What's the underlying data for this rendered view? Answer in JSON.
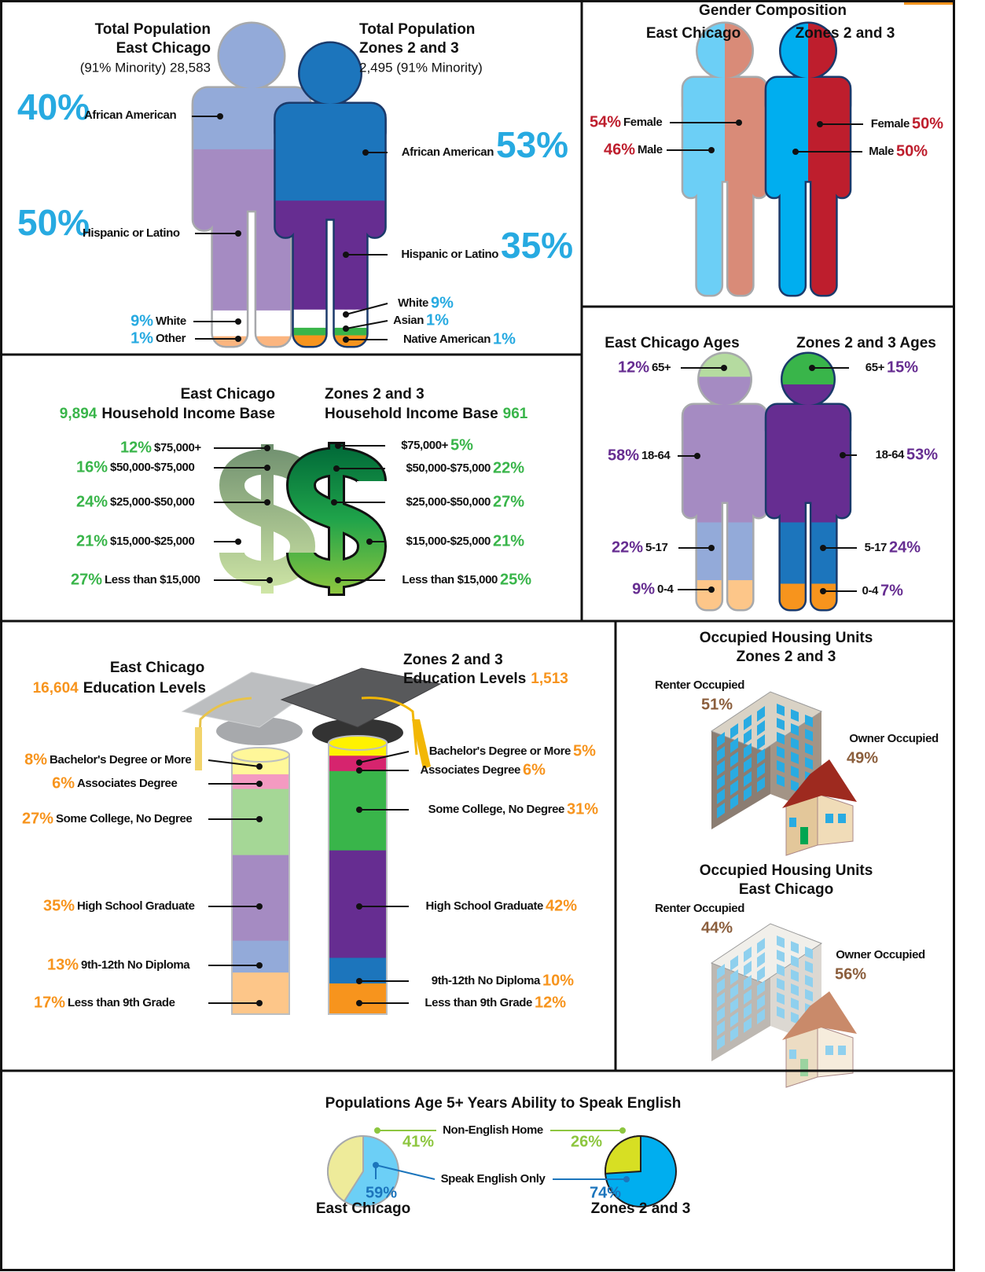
{
  "population": {
    "ec": {
      "title": [
        "Total Population",
        "East Chicago"
      ],
      "note": "(91% Minority) 28,583",
      "groups": [
        {
          "label": "African American",
          "value": "40%"
        },
        {
          "label": "Hispanic or Latino",
          "value": "50%"
        },
        {
          "label": "White",
          "value": "9%"
        },
        {
          "label": "Other",
          "value": "1%"
        }
      ]
    },
    "zones": {
      "title": [
        "Total Population",
        "Zones 2 and 3"
      ],
      "note": "2,495 (91% Minority)",
      "groups": [
        {
          "label": "African American",
          "value": "53%"
        },
        {
          "label": "Hispanic or Latino",
          "value": "35%"
        },
        {
          "label": "White",
          "value": "9%"
        },
        {
          "label": "Asian",
          "value": "1%"
        },
        {
          "label": "Native American",
          "value": "1%"
        }
      ]
    }
  },
  "gender": {
    "title": "Gender Composition",
    "ec": {
      "name": "East Chicago",
      "groups": [
        {
          "label": "Female",
          "value": "54%"
        },
        {
          "label": "Male",
          "value": "46%"
        }
      ]
    },
    "zones": {
      "name": "Zones 2 and 3",
      "groups": [
        {
          "label": "Female",
          "value": "50%"
        },
        {
          "label": "Male",
          "value": "50%"
        }
      ]
    }
  },
  "ages": {
    "ec": {
      "title": "East Chicago Ages",
      "groups": [
        {
          "label": "65+",
          "value": "12%"
        },
        {
          "label": "18-64",
          "value": "58%"
        },
        {
          "label": "5-17",
          "value": "22%"
        },
        {
          "label": "0-4",
          "value": "9%"
        }
      ]
    },
    "zones": {
      "title": "Zones 2 and 3 Ages",
      "groups": [
        {
          "label": "65+",
          "value": "15%"
        },
        {
          "label": "18-64",
          "value": "53%"
        },
        {
          "label": "5-17",
          "value": "24%"
        },
        {
          "label": "0-4",
          "value": "7%"
        }
      ]
    }
  },
  "income": {
    "ec": {
      "name": "East Chicago",
      "base": "9,894",
      "base_label": "Household Income Base",
      "groups": [
        {
          "label": "$75,000+",
          "value": "12%"
        },
        {
          "label": "$50,000-$75,000",
          "value": "16%"
        },
        {
          "label": "$25,000-$50,000",
          "value": "24%"
        },
        {
          "label": "$15,000-$25,000",
          "value": "21%"
        },
        {
          "label": "Less than $15,000",
          "value": "27%"
        }
      ]
    },
    "zones": {
      "name": "Zones 2 and 3",
      "base": "961",
      "base_label": "Household Income Base",
      "groups": [
        {
          "label": "$75,000+",
          "value": "5%"
        },
        {
          "label": "$50,000-$75,000",
          "value": "22%"
        },
        {
          "label": "$25,000-$50,000",
          "value": "27%"
        },
        {
          "label": "$15,000-$25,000",
          "value": "21%"
        },
        {
          "label": "Less than $15,000",
          "value": "25%"
        }
      ]
    }
  },
  "education": {
    "ec": {
      "name": "East Chicago",
      "base": "16,604",
      "base_label": "Education Levels",
      "groups": [
        {
          "label": "Bachelor's Degree or More",
          "value": "8%"
        },
        {
          "label": "Associates Degree",
          "value": "6%"
        },
        {
          "label": "Some College, No Degree",
          "value": "27%"
        },
        {
          "label": "High School Graduate",
          "value": "35%"
        },
        {
          "label": "9th-12th No Diploma",
          "value": "13%"
        },
        {
          "label": "Less than 9th Grade",
          "value": "17%"
        }
      ]
    },
    "zones": {
      "name": "Zones 2 and 3",
      "base": "1,513",
      "base_label": "Education Levels",
      "groups": [
        {
          "label": "Bachelor's Degree or More",
          "value": "5%"
        },
        {
          "label": "Associates Degree",
          "value": "6%"
        },
        {
          "label": "Some College, No Degree",
          "value": "31%"
        },
        {
          "label": "High School Graduate",
          "value": "42%"
        },
        {
          "label": "9th-12th No Diploma",
          "value": "10%"
        },
        {
          "label": "Less than 9th Grade",
          "value": "12%"
        }
      ]
    }
  },
  "housing": [
    {
      "title": [
        "Occupied Housing Units",
        "Zones 2 and 3"
      ],
      "groups": [
        {
          "label": "Renter Occupied",
          "value": "51%"
        },
        {
          "label": "Owner Occupied",
          "value": "49%"
        }
      ]
    },
    {
      "title": [
        "Occupied Housing Units",
        "East Chicago"
      ],
      "groups": [
        {
          "label": "Renter Occupied",
          "value": "44%"
        },
        {
          "label": "Owner Occupied",
          "value": "56%"
        }
      ]
    }
  ],
  "english": {
    "title": "Populations Age 5+ Years Ability to Speak English",
    "labels": [
      "Non-English Home",
      "Speak English Only"
    ],
    "ec": {
      "name": "East Chicago",
      "values": [
        "41%",
        "59%"
      ]
    },
    "zones": {
      "name": "Zones 2 and 3",
      "values": [
        "26%",
        "74%"
      ]
    }
  }
}
